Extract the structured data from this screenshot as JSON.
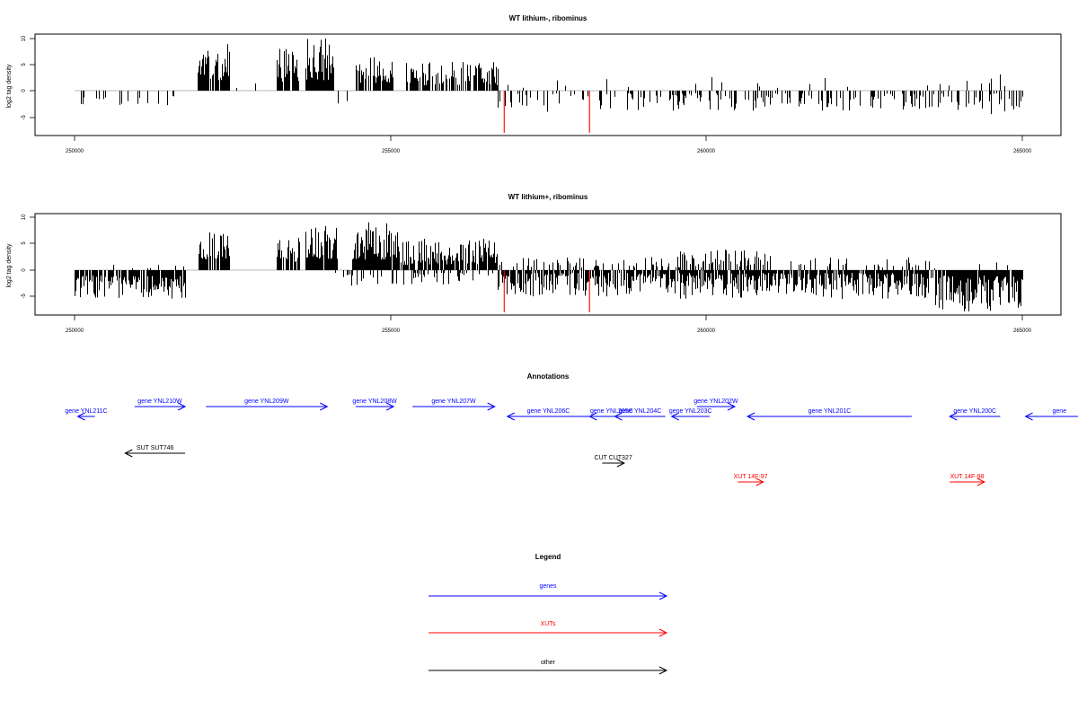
{
  "tracks": [
    {
      "title": "WT lithium-, ribominus",
      "ylabel": "log2 tag density",
      "x_ticks": [
        "250000",
        "255000",
        "260000",
        "265000"
      ],
      "y_ticks": [
        "-5",
        "0",
        "5",
        "10"
      ]
    },
    {
      "title": "WT lithium+, ribominus",
      "ylabel": "log2 tag density",
      "x_ticks": [
        "250000",
        "255000",
        "260000",
        "265000"
      ],
      "y_ticks": [
        "-5",
        "0",
        "5",
        "10"
      ]
    }
  ],
  "annotations": {
    "title": "Annotations",
    "items": [
      {
        "label": "gene YNL211C",
        "start": 250050,
        "end": 250320,
        "strand": "-",
        "type": "gene"
      },
      {
        "label": "gene YNL210W",
        "start": 250950,
        "end": 251750,
        "strand": "+",
        "type": "gene"
      },
      {
        "label": "gene YNL209W",
        "start": 252080,
        "end": 254000,
        "strand": "+",
        "type": "gene"
      },
      {
        "label": "gene YNL208W",
        "start": 254450,
        "end": 255050,
        "strand": "+",
        "type": "gene"
      },
      {
        "label": "gene YNL207W",
        "start": 255350,
        "end": 256650,
        "strand": "+",
        "type": "gene"
      },
      {
        "label": "gene YNL206C",
        "start": 256850,
        "end": 258150,
        "strand": "-",
        "type": "gene"
      },
      {
        "label": "gene YNL205C",
        "start": 258150,
        "end": 258850,
        "strand": "-",
        "type": "gene"
      },
      {
        "label": "gene YNL204C",
        "start": 258550,
        "end": 259350,
        "strand": "-",
        "type": "gene"
      },
      {
        "label": "gene YNL203C",
        "start": 259450,
        "end": 260050,
        "strand": "-",
        "type": "gene"
      },
      {
        "label": "gene YNL202W",
        "start": 259850,
        "end": 260450,
        "strand": "+",
        "type": "gene"
      },
      {
        "label": "gene YNL201C",
        "start": 260650,
        "end": 263250,
        "strand": "-",
        "type": "gene"
      },
      {
        "label": "gene YNL200C",
        "start": 263850,
        "end": 264650,
        "strand": "-",
        "type": "gene"
      },
      {
        "label": "gene",
        "start": 265050,
        "end": 266200,
        "strand": "-",
        "type": "gene"
      },
      {
        "label": "SUT SUT746",
        "start": 250800,
        "end": 251750,
        "strand": "-",
        "type": "other"
      },
      {
        "label": "CUT CUT327",
        "start": 258350,
        "end": 258700,
        "strand": "+",
        "type": "other"
      },
      {
        "label": "XUT 14F-97",
        "start": 260500,
        "end": 260900,
        "strand": "+",
        "type": "xut"
      },
      {
        "label": "XUT 14F-98",
        "start": 263850,
        "end": 264400,
        "strand": "+",
        "type": "xut"
      }
    ]
  },
  "legend": {
    "title": "Legend",
    "items": [
      {
        "label": "genes",
        "type": "gene"
      },
      {
        "label": "XUTs",
        "type": "xut"
      },
      {
        "label": "other",
        "type": "other"
      }
    ]
  },
  "colors": {
    "gene": "#0000ff",
    "xut": "#ff0000",
    "other": "#000000",
    "bars": "#000000",
    "highlight": "#ff0000",
    "baseline": "#a0a0a0"
  },
  "chart_data": [
    {
      "type": "bar",
      "title": "WT lithium-, ribominus",
      "xlabel": "",
      "ylabel": "log2 tag density",
      "xlim": [
        249400,
        265600
      ],
      "ylim": [
        -8.5,
        10.5
      ],
      "grid": false,
      "seed": 11,
      "highlights": [
        {
          "x": 256800,
          "y": -8
        },
        {
          "x": 258150,
          "y": -8
        }
      ],
      "regions": [
        {
          "x": [
            250050,
            251750
          ],
          "sign": -1,
          "min": 1,
          "max": 3.5,
          "density": 0.12
        },
        {
          "x": [
            251950,
            252450
          ],
          "sign": 1,
          "min": 2,
          "max": 9,
          "density": 0.9
        },
        {
          "x": [
            252550,
            253000
          ],
          "sign": 1,
          "min": 0.5,
          "max": 2,
          "density": 0.05
        },
        {
          "x": [
            253200,
            253550
          ],
          "sign": 1,
          "min": 1.5,
          "max": 8,
          "density": 0.85
        },
        {
          "x": [
            253650,
            254100
          ],
          "sign": 1,
          "min": 2,
          "max": 10,
          "density": 0.95
        },
        {
          "x": [
            254100,
            254400
          ],
          "sign": -1,
          "min": 1,
          "max": 3,
          "density": 0.12
        },
        {
          "x": [
            254450,
            255050
          ],
          "sign": 1,
          "min": 1.5,
          "max": 6.5,
          "density": 0.8
        },
        {
          "x": [
            255250,
            256700
          ],
          "sign": 1,
          "min": 1,
          "max": 5.5,
          "density": 0.75
        },
        {
          "x": [
            256700,
            259500
          ],
          "sign": -1,
          "min": 0.5,
          "max": 4,
          "density": 0.3
        },
        {
          "x": [
            256700,
            259500
          ],
          "sign": 1,
          "min": 0.5,
          "max": 3,
          "density": 0.05
        },
        {
          "x": [
            259500,
            263600
          ],
          "sign": -1,
          "min": 0.5,
          "max": 3.8,
          "density": 0.35
        },
        {
          "x": [
            259500,
            263600
          ],
          "sign": 1,
          "min": 0.5,
          "max": 3.5,
          "density": 0.03
        },
        {
          "x": [
            263600,
            265000
          ],
          "sign": -1,
          "min": 0.5,
          "max": 4.5,
          "density": 0.3
        },
        {
          "x": [
            263600,
            265000
          ],
          "sign": 1,
          "min": 0.5,
          "max": 3.5,
          "density": 0.05
        }
      ]
    },
    {
      "type": "bar",
      "title": "WT lithium+, ribominus",
      "xlabel": "",
      "ylabel": "log2 tag density",
      "xlim": [
        249400,
        265600
      ],
      "ylim": [
        -8.5,
        10.5
      ],
      "grid": false,
      "seed": 29,
      "highlights": [
        {
          "x": 256800,
          "y": -8
        },
        {
          "x": 258150,
          "y": -8
        }
      ],
      "regions": [
        {
          "x": [
            250000,
            251750
          ],
          "sign": -1,
          "min": 1,
          "max": 5.5,
          "density": 0.85
        },
        {
          "x": [
            250000,
            251750
          ],
          "sign": 1,
          "min": 0.3,
          "max": 1.2,
          "density": 0.03
        },
        {
          "x": [
            251950,
            252450
          ],
          "sign": 1,
          "min": 2,
          "max": 7.5,
          "density": 0.9
        },
        {
          "x": [
            253200,
            253550
          ],
          "sign": 1,
          "min": 1.5,
          "max": 7,
          "density": 0.85
        },
        {
          "x": [
            253650,
            254150
          ],
          "sign": 1,
          "min": 2,
          "max": 9,
          "density": 0.95
        },
        {
          "x": [
            254400,
            255100
          ],
          "sign": 1,
          "min": 2,
          "max": 9.5,
          "density": 0.95
        },
        {
          "x": [
            255100,
            256700
          ],
          "sign": 1,
          "min": 1,
          "max": 6,
          "density": 0.8
        },
        {
          "x": [
            254100,
            256700
          ],
          "sign": -1,
          "min": 0.5,
          "max": 3,
          "density": 0.2
        },
        {
          "x": [
            256700,
            259500
          ],
          "sign": -1,
          "min": 0.5,
          "max": 5,
          "density": 0.8
        },
        {
          "x": [
            256700,
            259500
          ],
          "sign": 1,
          "min": 0.5,
          "max": 2.5,
          "density": 0.25
        },
        {
          "x": [
            259500,
            263600
          ],
          "sign": -1,
          "min": 0.5,
          "max": 5.5,
          "density": 0.85
        },
        {
          "x": [
            259500,
            261000
          ],
          "sign": 1,
          "min": 0.5,
          "max": 4,
          "density": 0.45
        },
        {
          "x": [
            261000,
            263600
          ],
          "sign": 1,
          "min": 0.5,
          "max": 2.5,
          "density": 0.15
        },
        {
          "x": [
            263600,
            265000
          ],
          "sign": -1,
          "min": 1,
          "max": 8,
          "density": 0.9
        },
        {
          "x": [
            263600,
            265000
          ],
          "sign": 1,
          "min": 0.3,
          "max": 1.5,
          "density": 0.05
        }
      ]
    }
  ]
}
